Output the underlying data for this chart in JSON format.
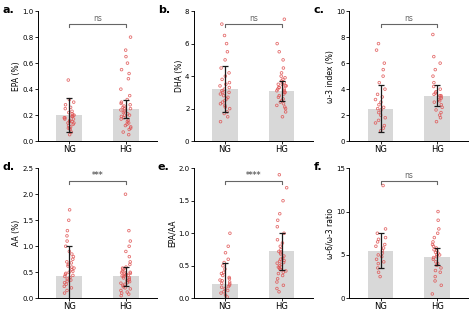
{
  "subplots": [
    {
      "label": "a.",
      "ylabel": "EPA (%)",
      "ylim": [
        0.0,
        1.0
      ],
      "yticks": [
        0.0,
        0.2,
        0.4,
        0.6,
        0.8,
        1.0
      ],
      "ytick_labels": [
        "0.0",
        "0.2",
        "0.4",
        "0.6",
        "0.8",
        "1.0"
      ],
      "sig": "ns",
      "bar_means": [
        0.2,
        0.25
      ],
      "bar_ci": [
        0.13,
        0.07
      ],
      "dot_data_ng": [
        0.05,
        0.07,
        0.09,
        0.1,
        0.1,
        0.11,
        0.12,
        0.13,
        0.14,
        0.14,
        0.15,
        0.15,
        0.16,
        0.17,
        0.17,
        0.18,
        0.18,
        0.19,
        0.19,
        0.2,
        0.2,
        0.21,
        0.22,
        0.23,
        0.25,
        0.26,
        0.28,
        0.3,
        0.32,
        0.47
      ],
      "dot_data_hg": [
        0.05,
        0.07,
        0.09,
        0.1,
        0.11,
        0.12,
        0.13,
        0.14,
        0.15,
        0.16,
        0.17,
        0.18,
        0.19,
        0.2,
        0.2,
        0.21,
        0.22,
        0.23,
        0.24,
        0.25,
        0.25,
        0.26,
        0.27,
        0.28,
        0.29,
        0.3,
        0.32,
        0.35,
        0.4,
        0.48,
        0.52,
        0.55,
        0.6,
        0.65,
        0.7,
        0.8
      ]
    },
    {
      "label": "b.",
      "ylabel": "DHA (%)",
      "ylim": [
        0,
        8
      ],
      "yticks": [
        0,
        2,
        4,
        6,
        8
      ],
      "ytick_labels": [
        "0",
        "2",
        "4",
        "6",
        "8"
      ],
      "sig": "ns",
      "bar_means": [
        3.2,
        3.1
      ],
      "bar_ci": [
        1.4,
        0.6
      ],
      "dot_data_ng": [
        1.2,
        1.5,
        1.7,
        1.8,
        2.0,
        2.1,
        2.2,
        2.3,
        2.4,
        2.5,
        2.6,
        2.7,
        2.8,
        2.9,
        3.0,
        3.0,
        3.1,
        3.2,
        3.3,
        3.4,
        3.5,
        3.6,
        3.8,
        4.0,
        4.2,
        4.5,
        5.0,
        5.5,
        6.0,
        6.5,
        7.2
      ],
      "dot_data_hg": [
        1.5,
        1.8,
        2.0,
        2.1,
        2.2,
        2.3,
        2.4,
        2.5,
        2.6,
        2.7,
        2.8,
        2.9,
        3.0,
        3.0,
        3.1,
        3.1,
        3.2,
        3.2,
        3.3,
        3.3,
        3.4,
        3.4,
        3.5,
        3.5,
        3.6,
        3.7,
        3.8,
        3.9,
        4.0,
        4.2,
        4.5,
        5.0,
        5.5,
        6.0,
        7.5
      ]
    },
    {
      "label": "c.",
      "ylabel": "ω-3 index (%)",
      "ylim": [
        0,
        10
      ],
      "yticks": [
        0,
        2,
        4,
        6,
        8,
        10
      ],
      "ytick_labels": [
        "0",
        "2",
        "4",
        "6",
        "8",
        "10"
      ],
      "sig": "ns",
      "bar_means": [
        2.5,
        3.5
      ],
      "bar_ci": [
        1.8,
        0.8
      ],
      "dot_data_ng": [
        0.8,
        1.0,
        1.2,
        1.4,
        1.6,
        1.8,
        2.0,
        2.2,
        2.4,
        2.5,
        2.6,
        2.8,
        3.0,
        3.2,
        3.4,
        3.6,
        4.0,
        4.5,
        5.0,
        5.5,
        6.0,
        7.0,
        7.5
      ],
      "dot_data_hg": [
        1.5,
        1.8,
        2.0,
        2.2,
        2.4,
        2.6,
        2.8,
        3.0,
        3.1,
        3.2,
        3.3,
        3.4,
        3.5,
        3.5,
        3.6,
        3.7,
        3.8,
        4.0,
        4.2,
        4.5,
        5.0,
        5.5,
        6.0,
        6.5,
        8.2
      ]
    },
    {
      "label": "d.",
      "ylabel": "AA (%)",
      "ylim": [
        0,
        2.5
      ],
      "yticks": [
        0.0,
        0.5,
        1.0,
        1.5,
        2.0,
        2.5
      ],
      "ytick_labels": [
        "0.0",
        "0.5",
        "1.0",
        "1.5",
        "2.0",
        "2.5"
      ],
      "sig": "***",
      "bar_means": [
        0.42,
        0.42
      ],
      "bar_ci": [
        0.58,
        0.18
      ],
      "dot_data_ng": [
        0.1,
        0.15,
        0.2,
        0.23,
        0.27,
        0.3,
        0.33,
        0.35,
        0.37,
        0.4,
        0.42,
        0.44,
        0.46,
        0.48,
        0.5,
        0.52,
        0.55,
        0.58,
        0.6,
        0.62,
        0.65,
        0.68,
        0.7,
        0.75,
        0.8,
        0.85,
        0.9,
        1.0,
        1.1,
        1.2,
        1.3,
        1.5,
        1.7
      ],
      "dot_data_hg": [
        0.05,
        0.08,
        0.1,
        0.12,
        0.15,
        0.18,
        0.2,
        0.22,
        0.25,
        0.27,
        0.29,
        0.3,
        0.32,
        0.34,
        0.35,
        0.37,
        0.39,
        0.4,
        0.42,
        0.43,
        0.44,
        0.45,
        0.46,
        0.47,
        0.48,
        0.49,
        0.5,
        0.52,
        0.54,
        0.56,
        0.58,
        0.6,
        0.65,
        0.7,
        0.8,
        0.9,
        1.0,
        1.1,
        1.3,
        2.0
      ]
    },
    {
      "label": "e.",
      "ylabel": "EPA/AA",
      "ylim": [
        0.0,
        2.0
      ],
      "yticks": [
        0.0,
        0.5,
        1.0,
        1.5,
        2.0
      ],
      "ytick_labels": [
        "0.0",
        "0.5",
        "1.0",
        "1.5",
        "2.0"
      ],
      "sig": "****",
      "bar_means": [
        0.22,
        0.72
      ],
      "bar_ci": [
        0.32,
        0.28
      ],
      "dot_data_ng": [
        0.02,
        0.05,
        0.08,
        0.1,
        0.12,
        0.15,
        0.17,
        0.18,
        0.2,
        0.22,
        0.23,
        0.25,
        0.27,
        0.28,
        0.3,
        0.32,
        0.35,
        0.38,
        0.4,
        0.45,
        0.5,
        0.55,
        0.6,
        0.7,
        0.8,
        1.0
      ],
      "dot_data_hg": [
        0.1,
        0.15,
        0.2,
        0.25,
        0.3,
        0.35,
        0.38,
        0.4,
        0.42,
        0.44,
        0.45,
        0.47,
        0.48,
        0.5,
        0.52,
        0.54,
        0.55,
        0.57,
        0.58,
        0.6,
        0.62,
        0.65,
        0.68,
        0.7,
        0.72,
        0.75,
        0.8,
        0.85,
        0.9,
        1.0,
        1.1,
        1.2,
        1.3,
        1.5,
        1.7,
        1.9
      ]
    },
    {
      "label": "f.",
      "ylabel": "ω-6/ω-3 ratio",
      "ylim": [
        0,
        15
      ],
      "yticks": [
        0,
        5,
        10,
        15
      ],
      "ytick_labels": [
        "0",
        "5",
        "10",
        "15"
      ],
      "sig": "ns",
      "bar_means": [
        5.5,
        4.8
      ],
      "bar_ci": [
        2.0,
        1.0
      ],
      "dot_data_ng": [
        2.5,
        3.0,
        3.5,
        4.0,
        4.2,
        4.5,
        4.8,
        5.0,
        5.2,
        5.5,
        5.8,
        6.0,
        6.2,
        6.5,
        6.8,
        7.0,
        7.5,
        8.0,
        13.0
      ],
      "dot_data_hg": [
        0.5,
        1.5,
        2.0,
        2.5,
        3.0,
        3.2,
        3.5,
        3.8,
        4.0,
        4.2,
        4.5,
        4.7,
        4.8,
        5.0,
        5.0,
        5.2,
        5.3,
        5.5,
        5.6,
        5.8,
        6.0,
        6.2,
        6.5,
        7.0,
        7.5,
        8.0,
        9.0,
        10.0
      ]
    }
  ],
  "bar_color": "#d8d8d8",
  "dot_color": "#e05555",
  "dot_edge_color": "#e05555",
  "error_color": "#1a1a1a",
  "sig_color": "#666666",
  "bg_color": "#ffffff"
}
